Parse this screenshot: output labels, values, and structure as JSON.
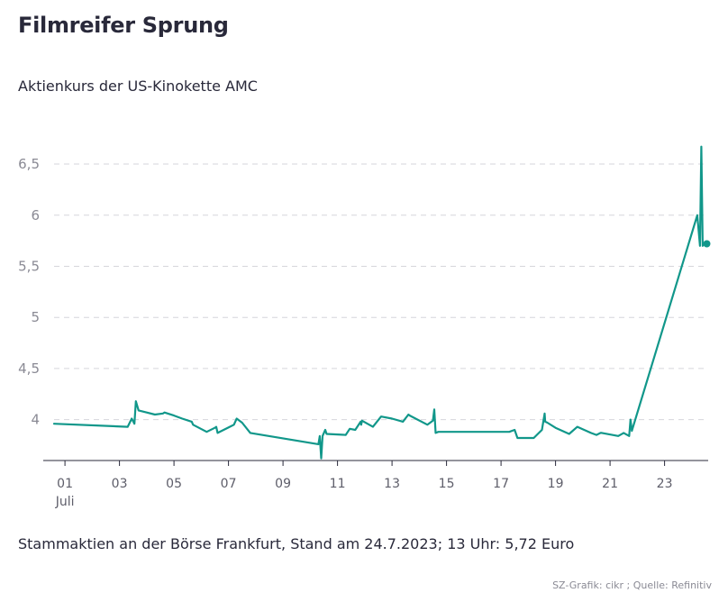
{
  "header": {
    "title": "Filmreifer Sprung",
    "subtitle": "Aktienkurs der US-Kinokette AMC"
  },
  "footer": {
    "note": "Stammaktien an der Börse Frankfurt, Stand am 24.7.2023; 13 Uhr: 5,72 Euro",
    "source": "SZ-Grafik: cikr ; Quelle: Refinitiv"
  },
  "colors": {
    "line": "#11978a",
    "grid": "#d6d6db",
    "axis": "#29293a"
  },
  "chart_data": {
    "type": "line",
    "title": "Filmreifer Sprung",
    "subtitle": "Aktienkurs der US-Kinokette AMC",
    "xlabel": "",
    "ylabel": "",
    "unit": "Euro",
    "ylim": [
      3.6,
      6.8
    ],
    "xlim": [
      0.6,
      24.6
    ],
    "grid": true,
    "y_ticks": [
      {
        "value": 4.0,
        "label": "4"
      },
      {
        "value": 4.5,
        "label": "4,5"
      },
      {
        "value": 5.0,
        "label": "5"
      },
      {
        "value": 5.5,
        "label": "5,5"
      },
      {
        "value": 6.0,
        "label": "6"
      },
      {
        "value": 6.5,
        "label": "6,5"
      }
    ],
    "x_ticks": [
      {
        "value": 1,
        "label": "01",
        "sublabel": "Juli"
      },
      {
        "value": 3,
        "label": "03"
      },
      {
        "value": 5,
        "label": "05"
      },
      {
        "value": 7,
        "label": "07"
      },
      {
        "value": 9,
        "label": "09"
      },
      {
        "value": 11,
        "label": "11"
      },
      {
        "value": 13,
        "label": "13"
      },
      {
        "value": 15,
        "label": "15"
      },
      {
        "value": 17,
        "label": "17"
      },
      {
        "value": 19,
        "label": "19"
      },
      {
        "value": 21,
        "label": "21"
      },
      {
        "value": 23,
        "label": "23"
      }
    ],
    "series": [
      {
        "name": "AMC",
        "x": [
          0.6,
          3.3,
          3.45,
          3.55,
          3.6,
          3.7,
          4.0,
          4.3,
          4.6,
          4.65,
          5.0,
          5.3,
          5.65,
          5.7,
          6.2,
          6.5,
          6.55,
          6.6,
          7.2,
          7.3,
          7.5,
          7.8,
          10.3,
          10.35,
          10.4,
          10.45,
          10.55,
          10.6,
          11.3,
          11.45,
          11.65,
          11.85,
          11.87,
          11.9,
          12.3,
          12.6,
          13.0,
          13.4,
          13.6,
          13.65,
          14.3,
          14.5,
          14.55,
          14.6,
          14.7,
          17.0,
          17.3,
          17.5,
          17.6,
          18.2,
          18.5,
          18.6,
          18.62,
          18.7,
          19.0,
          19.5,
          19.8,
          20.3,
          20.5,
          20.65,
          20.7,
          21.3,
          21.5,
          21.7,
          21.75,
          21.8,
          24.2,
          24.3,
          24.35,
          24.4,
          24.45,
          24.55
        ],
        "y": [
          3.96,
          3.93,
          4.01,
          3.96,
          4.18,
          4.09,
          4.07,
          4.05,
          4.06,
          4.07,
          4.04,
          4.01,
          3.98,
          3.95,
          3.88,
          3.92,
          3.93,
          3.87,
          3.95,
          4.01,
          3.97,
          3.87,
          3.76,
          3.84,
          3.62,
          3.84,
          3.9,
          3.86,
          3.85,
          3.91,
          3.9,
          3.98,
          3.95,
          3.99,
          3.93,
          4.03,
          4.01,
          3.98,
          4.05,
          4.04,
          3.95,
          3.99,
          4.1,
          3.87,
          3.88,
          3.88,
          3.88,
          3.9,
          3.82,
          3.82,
          3.9,
          4.06,
          3.98,
          3.97,
          3.92,
          3.86,
          3.93,
          3.87,
          3.85,
          3.87,
          3.87,
          3.84,
          3.87,
          3.84,
          4.0,
          3.89,
          6.0,
          5.7,
          6.67,
          5.7,
          5.72,
          5.72
        ]
      }
    ],
    "last_point": {
      "x": 24.55,
      "y": 5.72
    }
  }
}
